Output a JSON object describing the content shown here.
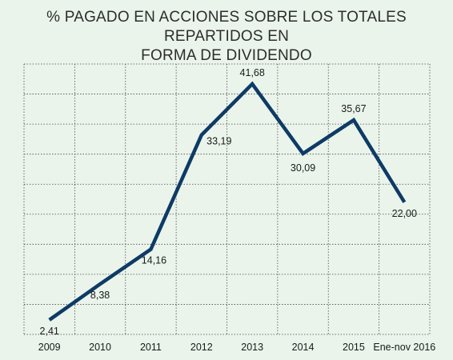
{
  "title_line1": "% PAGADO EN ACCIONES SOBRE LOS TOTALES REPARTIDOS EN",
  "title_line2": "FORMA DE DIVIDENDO",
  "colors": {
    "line": "#0e3a66",
    "grid": "#4a4a4a",
    "background": "#eaf4ea"
  },
  "chart_data": {
    "type": "line",
    "title": "% PAGADO EN ACCIONES SOBRE LOS TOTALES REPARTIDOS EN FORMA DE DIVIDENDO",
    "categories": [
      "2009",
      "2010",
      "2011",
      "2012",
      "2013",
      "2014",
      "2015",
      "Ene-nov 2016"
    ],
    "series": [
      {
        "values": [
          2.41,
          8.38,
          14.16,
          33.19,
          41.68,
          30.09,
          35.67,
          22.0
        ],
        "labels": [
          "2,41",
          "8,38",
          "14,16",
          "33,19",
          "41,68",
          "30,09",
          "35,67",
          "22,00"
        ]
      }
    ],
    "ylim": [
      0,
      45
    ],
    "grid": "dotted"
  }
}
